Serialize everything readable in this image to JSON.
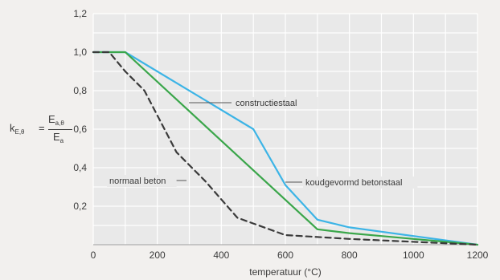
{
  "chart_data": {
    "type": "line",
    "xlabel": "temperatuur (°C)",
    "ylabel": {
      "symbol": "k",
      "symbol_sub": "E,θ",
      "equals": "=",
      "numerator": "E",
      "numerator_sub": "a,θ",
      "denominator": "E",
      "denominator_sub": "a"
    },
    "xlim": [
      0,
      1200
    ],
    "ylim": [
      0,
      1.2
    ],
    "x_ticks": [
      "0",
      "200",
      "400",
      "600",
      "800",
      "1000",
      "1200"
    ],
    "y_ticks": [
      "0,2",
      "0,4",
      "0,6",
      "0,8",
      "1,0",
      "1,2"
    ],
    "grid": true,
    "series": [
      {
        "name": "constructiestaal",
        "color": "#3cb4e6",
        "dash": "solid",
        "points": [
          [
            0,
            1.0
          ],
          [
            100,
            1.0
          ],
          [
            500,
            0.6
          ],
          [
            600,
            0.31
          ],
          [
            700,
            0.13
          ],
          [
            800,
            0.09
          ],
          [
            900,
            0.0675
          ],
          [
            1000,
            0.045
          ],
          [
            1100,
            0.0225
          ],
          [
            1200,
            0.0
          ]
        ]
      },
      {
        "name": "koudgevormd betonstaal",
        "color": "#3aa64a",
        "dash": "solid",
        "points": [
          [
            0,
            1.0
          ],
          [
            100,
            1.0
          ],
          [
            700,
            0.08
          ],
          [
            800,
            0.06
          ],
          [
            900,
            0.045
          ],
          [
            1000,
            0.03
          ],
          [
            1100,
            0.015
          ],
          [
            1200,
            0.0
          ]
        ]
      },
      {
        "name": "normaal beton",
        "color": "#3a3a3a",
        "dash": "dashed",
        "points": [
          [
            0,
            1.0
          ],
          [
            50,
            1.0
          ],
          [
            100,
            0.9
          ],
          [
            160,
            0.8
          ],
          [
            260,
            0.48
          ],
          [
            350,
            0.33
          ],
          [
            450,
            0.14
          ],
          [
            600,
            0.05
          ],
          [
            800,
            0.03
          ],
          [
            1200,
            0.0
          ]
        ]
      }
    ],
    "annotations": [
      {
        "text": "constructiestaal",
        "series": "constructiestaal"
      },
      {
        "text": "koudgevormd betonstaal",
        "series": "koudgevormd betonstaal"
      },
      {
        "text": "normaal beton",
        "series": "normaal beton"
      }
    ]
  }
}
